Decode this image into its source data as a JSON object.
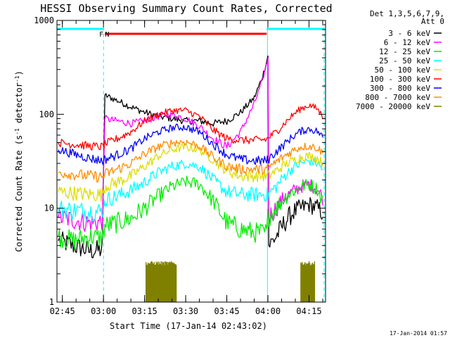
{
  "chart_data": {
    "type": "line",
    "title": "HESSI Observing Summary Count Rates, Corrected",
    "xlabel": "Start Time (17-Jan-14 02:43:02)",
    "ylabel_parts": [
      "Corrected Count Rate (s",
      "-1",
      " detector",
      "-1",
      ")"
    ],
    "y_scale": "log",
    "ylim": [
      1,
      1000
    ],
    "y_ticks": [
      {
        "value": 1,
        "label": "1"
      },
      {
        "value": 10,
        "label": "10"
      },
      {
        "value": 100,
        "label": "100"
      },
      {
        "value": 1000,
        "label": "1000"
      }
    ],
    "x_unit": "minutes since 02:43:02",
    "xlim": [
      0,
      98
    ],
    "x_ticks": [
      {
        "value": 1.97,
        "label": "02:45"
      },
      {
        "value": 16.97,
        "label": "03:00"
      },
      {
        "value": 31.97,
        "label": "03:15"
      },
      {
        "value": 46.97,
        "label": "03:30"
      },
      {
        "value": 61.97,
        "label": "03:45"
      },
      {
        "value": 76.97,
        "label": "04:00"
      },
      {
        "value": 91.97,
        "label": "04:15"
      }
    ],
    "legend_header": [
      "Det 1,3,5,6,7,9,",
      "Att 0"
    ],
    "legend_placement": "right, outside plot",
    "series": [
      {
        "name": "3 - 6 keV",
        "color": "#000000",
        "points": [
          [
            0.5,
            4.5
          ],
          [
            6,
            4
          ],
          [
            12,
            3.5
          ],
          [
            16.5,
            3.6
          ],
          [
            17.5,
            160
          ],
          [
            22,
            140
          ],
          [
            27,
            120
          ],
          [
            32,
            105
          ],
          [
            37,
            95
          ],
          [
            42,
            90
          ],
          [
            47,
            85
          ],
          [
            52,
            85
          ],
          [
            57,
            80
          ],
          [
            62,
            85
          ],
          [
            67,
            105
          ],
          [
            72,
            150
          ],
          [
            75,
            250
          ],
          [
            77,
            420
          ],
          [
            77.3,
            4
          ],
          [
            80,
            5
          ],
          [
            83,
            7
          ],
          [
            86,
            9
          ],
          [
            89,
            10
          ],
          [
            92,
            11
          ],
          [
            95,
            10
          ],
          [
            97,
            9
          ]
        ]
      },
      {
        "name": "6 - 12 keV",
        "color": "#ff00ff",
        "points": [
          [
            0.5,
            8
          ],
          [
            6,
            7.5
          ],
          [
            12,
            7
          ],
          [
            16.5,
            7.2
          ],
          [
            17.5,
            90
          ],
          [
            22,
            85
          ],
          [
            27,
            80
          ],
          [
            32,
            85
          ],
          [
            37,
            95
          ],
          [
            42,
            100
          ],
          [
            47,
            90
          ],
          [
            52,
            75
          ],
          [
            57,
            55
          ],
          [
            62,
            45
          ],
          [
            67,
            65
          ],
          [
            72,
            130
          ],
          [
            75,
            230
          ],
          [
            77,
            400
          ],
          [
            77.3,
            8
          ],
          [
            80,
            10
          ],
          [
            83,
            13
          ],
          [
            86,
            15
          ],
          [
            89,
            17
          ],
          [
            92,
            18
          ],
          [
            95,
            16
          ],
          [
            97,
            13
          ]
        ]
      },
      {
        "name": "12 - 25 keV",
        "color": "#00ee00",
        "points": [
          [
            0.5,
            5
          ],
          [
            6,
            4.5
          ],
          [
            12,
            5
          ],
          [
            16.5,
            4.8
          ],
          [
            17.5,
            6.5
          ],
          [
            22,
            7
          ],
          [
            27,
            7.8
          ],
          [
            32,
            10
          ],
          [
            37,
            13.5
          ],
          [
            42,
            17
          ],
          [
            47,
            19
          ],
          [
            52,
            18
          ],
          [
            57,
            12
          ],
          [
            62,
            7
          ],
          [
            67,
            6
          ],
          [
            72,
            5.5
          ],
          [
            76.5,
            5.5
          ],
          [
            77,
            8
          ],
          [
            80,
            10
          ],
          [
            83,
            13
          ],
          [
            86,
            15
          ],
          [
            89,
            17
          ],
          [
            92,
            18
          ],
          [
            95,
            16
          ],
          [
            97,
            12
          ]
        ]
      },
      {
        "name": "25 - 50 keV",
        "color": "#00ffff",
        "points": [
          [
            0.5,
            10
          ],
          [
            6,
            9.5
          ],
          [
            12,
            9.3
          ],
          [
            16.5,
            9.2
          ],
          [
            17.5,
            12
          ],
          [
            22,
            13.5
          ],
          [
            27,
            15.5
          ],
          [
            32,
            19
          ],
          [
            37,
            24
          ],
          [
            42,
            28
          ],
          [
            47,
            30
          ],
          [
            52,
            28
          ],
          [
            57,
            20
          ],
          [
            62,
            15
          ],
          [
            67,
            14
          ],
          [
            72,
            14
          ],
          [
            76.5,
            14
          ],
          [
            77,
            14
          ],
          [
            80,
            17
          ],
          [
            83,
            22
          ],
          [
            86,
            27
          ],
          [
            89,
            30
          ],
          [
            92,
            32
          ],
          [
            95,
            30
          ],
          [
            97,
            26
          ]
        ]
      },
      {
        "name": "50 - 100 keV",
        "color": "#dddd00",
        "points": [
          [
            0.5,
            15
          ],
          [
            6,
            14.5
          ],
          [
            12,
            14
          ],
          [
            16.5,
            14
          ],
          [
            17.5,
            17
          ],
          [
            22,
            19
          ],
          [
            27,
            22
          ],
          [
            32,
            28
          ],
          [
            37,
            36
          ],
          [
            42,
            42
          ],
          [
            47,
            45
          ],
          [
            52,
            42
          ],
          [
            57,
            33
          ],
          [
            62,
            25
          ],
          [
            67,
            22
          ],
          [
            72,
            22
          ],
          [
            76.5,
            22
          ],
          [
            77,
            22
          ],
          [
            80,
            25
          ],
          [
            83,
            29
          ],
          [
            86,
            32
          ],
          [
            89,
            35
          ],
          [
            92,
            36
          ],
          [
            95,
            34
          ],
          [
            97,
            30
          ]
        ]
      },
      {
        "name": "100 - 300 keV",
        "color": "#ff0000",
        "points": [
          [
            0.5,
            50
          ],
          [
            6,
            48
          ],
          [
            12,
            46
          ],
          [
            16.5,
            45
          ],
          [
            17.5,
            48
          ],
          [
            22,
            55
          ],
          [
            27,
            65
          ],
          [
            32,
            85
          ],
          [
            37,
            100
          ],
          [
            42,
            110
          ],
          [
            47,
            110
          ],
          [
            52,
            95
          ],
          [
            57,
            68
          ],
          [
            62,
            55
          ],
          [
            67,
            53
          ],
          [
            72,
            53
          ],
          [
            76.5,
            54
          ],
          [
            77,
            56
          ],
          [
            80,
            65
          ],
          [
            83,
            80
          ],
          [
            86,
            98
          ],
          [
            89,
            115
          ],
          [
            92,
            125
          ],
          [
            95,
            115
          ],
          [
            97,
            95
          ]
        ]
      },
      {
        "name": "300 - 800 keV",
        "color": "#0000ff",
        "points": [
          [
            0.5,
            42
          ],
          [
            6,
            38
          ],
          [
            12,
            34
          ],
          [
            16.5,
            32
          ],
          [
            17.5,
            33
          ],
          [
            22,
            37
          ],
          [
            27,
            43
          ],
          [
            32,
            55
          ],
          [
            37,
            65
          ],
          [
            42,
            72
          ],
          [
            47,
            73
          ],
          [
            52,
            65
          ],
          [
            57,
            48
          ],
          [
            62,
            37
          ],
          [
            67,
            33
          ],
          [
            72,
            32
          ],
          [
            76.5,
            32
          ],
          [
            77,
            33
          ],
          [
            80,
            40
          ],
          [
            83,
            48
          ],
          [
            86,
            58
          ],
          [
            89,
            66
          ],
          [
            92,
            70
          ],
          [
            95,
            66
          ],
          [
            97,
            57
          ]
        ]
      },
      {
        "name": "800 - 7000 keV",
        "color": "#ff8c00",
        "points": [
          [
            0.5,
            24
          ],
          [
            6,
            23
          ],
          [
            12,
            22
          ],
          [
            16.5,
            21.5
          ],
          [
            17.5,
            23
          ],
          [
            22,
            26
          ],
          [
            27,
            30
          ],
          [
            32,
            38
          ],
          [
            37,
            45
          ],
          [
            42,
            50
          ],
          [
            47,
            51
          ],
          [
            52,
            46
          ],
          [
            57,
            35
          ],
          [
            62,
            28
          ],
          [
            67,
            26
          ],
          [
            72,
            26
          ],
          [
            76.5,
            26
          ],
          [
            77,
            27
          ],
          [
            80,
            31
          ],
          [
            83,
            36
          ],
          [
            86,
            41
          ],
          [
            89,
            45
          ],
          [
            92,
            46
          ],
          [
            95,
            44
          ],
          [
            97,
            39
          ]
        ]
      },
      {
        "name": "7000 - 20000 keV",
        "color": "#808000",
        "points": []
      }
    ],
    "att_bursts": [
      [
        32.5,
        43.5
      ],
      [
        89,
        94
      ]
    ],
    "att_burst_level": 2.6,
    "saa_segments": [
      [
        0,
        17
      ],
      [
        76.5,
        97.5
      ]
    ],
    "night_segment": [
      17.5,
      76.5
    ],
    "flag_markers": [
      {
        "label": "F",
        "x": 16.2,
        "color": "#ff0000"
      },
      {
        "label": "N",
        "x": 18.3,
        "color": "#00ffff"
      }
    ],
    "vertical_markers": [
      {
        "x": 17,
        "style": "dashed",
        "color": "#00ffff"
      },
      {
        "x": 76.8,
        "style": "solid",
        "color": "#00ffff"
      },
      {
        "x": 97.5,
        "style": "dashed",
        "color": "#00ffff"
      }
    ],
    "timestamp": "17-Jan-2014 01:57"
  }
}
